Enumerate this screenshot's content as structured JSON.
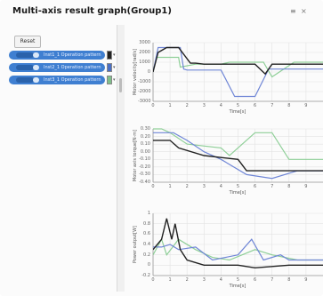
{
  "window": {
    "title": "Multi-axis result graph(Group1)"
  },
  "toolbar": {
    "icons": [
      "more-icon",
      "close-icon"
    ],
    "glyphs": [
      "≡",
      "×"
    ]
  },
  "left_panel": {
    "reset_label": "Reset",
    "series": [
      {
        "label": "Inst1_1 Operation pattern",
        "color": "#222222",
        "symbol": "■"
      },
      {
        "label": "Inst2_1 Operation pattern",
        "color": "#4a6fc4",
        "symbol": "■"
      },
      {
        "label": "Inst3_1 Operation pattern",
        "color": "#7fbf8a",
        "symbol": "■"
      }
    ]
  },
  "colors": {
    "accent": "#3f7fd1",
    "series_black": "#222222",
    "series_blue": "#6f86d6",
    "series_green": "#8fcf98",
    "grid": "#e3e3e3"
  },
  "chart_data": [
    {
      "type": "line",
      "title": "",
      "xlabel": "Time[s]",
      "ylabel": "Motor velocity[rad/s]",
      "ylim": [
        -3000,
        3000
      ],
      "xlim": [
        0,
        10
      ],
      "y_ticks": [
        "3000",
        "2000",
        "1000",
        "0",
        "-1000",
        "-2000",
        "-3000"
      ],
      "x_ticks": [
        "0",
        "1",
        "2",
        "3",
        "4",
        "5",
        "6",
        "7",
        "8",
        "9"
      ],
      "grid": true,
      "series": [
        {
          "color": "#222222",
          "x": [
            0,
            0.3,
            0.8,
            1.5,
            2.2,
            2.5,
            3,
            3.4,
            4.3,
            6.0,
            6.6,
            7.0,
            7.3,
            10
          ],
          "y": [
            0,
            2000,
            2500,
            2500,
            900,
            900,
            800,
            800,
            800,
            800,
            -200,
            800,
            800,
            800
          ]
        },
        {
          "color": "#6f86d6",
          "x": [
            0,
            0.3,
            0.6,
            1.6,
            1.8,
            2,
            2.5,
            4.0,
            4.8,
            6.0,
            6.8,
            7.5,
            10
          ],
          "y": [
            0,
            2500,
            2500,
            2500,
            300,
            200,
            200,
            200,
            -2500,
            -2500,
            300,
            300,
            300
          ]
        },
        {
          "color": "#8fcf98",
          "x": [
            0,
            0.2,
            0.5,
            1.5,
            1.6,
            2.5,
            4.0,
            4.5,
            6.5,
            7.0,
            8.3,
            10
          ],
          "y": [
            0,
            1500,
            1500,
            1500,
            500,
            800,
            800,
            1000,
            1000,
            -500,
            1000,
            1000
          ]
        }
      ]
    },
    {
      "type": "line",
      "title": "",
      "xlabel": "Time[s]",
      "ylabel": "Motor axis torque[N·m]",
      "ylim": [
        -0.4,
        0.3
      ],
      "xlim": [
        0,
        10
      ],
      "y_ticks": [
        "0.30",
        "0.20",
        "0.10",
        "0.00",
        "-0.10",
        "-0.20",
        "-0.30",
        "-0.40"
      ],
      "x_ticks": [
        "0",
        "1",
        "2",
        "3",
        "4",
        "5",
        "6",
        "7",
        "8",
        "9"
      ],
      "grid": true,
      "series": [
        {
          "color": "#222222",
          "x": [
            0,
            0.3,
            1.0,
            1.5,
            3.0,
            5.0,
            5.5,
            8,
            10
          ],
          "y": [
            0.15,
            0.15,
            0.15,
            0.05,
            -0.05,
            -0.1,
            -0.25,
            -0.25,
            -0.25
          ]
        },
        {
          "color": "#6f86d6",
          "x": [
            0,
            1.2,
            2.0,
            3.0,
            4.0,
            5.5,
            7.0,
            8.5,
            10
          ],
          "y": [
            0.25,
            0.25,
            0.15,
            0.0,
            -0.1,
            -0.3,
            -0.35,
            -0.25,
            -0.25
          ]
        },
        {
          "color": "#8fcf98",
          "x": [
            0,
            0.5,
            1.0,
            2.0,
            4.0,
            4.5,
            6.0,
            7.0,
            8.0,
            10
          ],
          "y": [
            0.3,
            0.3,
            0.25,
            0.1,
            0.05,
            -0.05,
            0.25,
            0.25,
            -0.1,
            -0.1
          ]
        }
      ]
    },
    {
      "type": "line",
      "title": "",
      "xlabel": "Time[s]",
      "ylabel": "Power output[W]",
      "ylim": [
        -0.2,
        1.0
      ],
      "xlim": [
        0,
        10
      ],
      "y_ticks": [
        "1",
        "0.8",
        "0.6",
        "0.4",
        "0.2",
        "0",
        "-0.2"
      ],
      "x_ticks": [
        "0",
        "1",
        "2",
        "3",
        "4",
        "5",
        "6",
        "7",
        "8",
        "9"
      ],
      "grid": true,
      "series": [
        {
          "color": "#222222",
          "x": [
            0,
            0.5,
            0.8,
            1.1,
            1.3,
            1.6,
            2.0,
            2.5,
            3.0,
            5.0,
            6.0,
            8.0,
            10
          ],
          "y": [
            0.3,
            0.5,
            0.9,
            0.5,
            0.8,
            0.3,
            0.1,
            0.05,
            0.0,
            0.0,
            -0.05,
            0.0,
            0.0
          ]
        },
        {
          "color": "#6f86d6",
          "x": [
            0,
            0.5,
            1.0,
            1.5,
            2.5,
            3.5,
            5.0,
            5.8,
            6.5,
            7.5,
            8.0,
            10
          ],
          "y": [
            0.35,
            0.35,
            0.4,
            0.3,
            0.35,
            0.1,
            0.2,
            0.5,
            0.1,
            0.2,
            0.1,
            0.1
          ]
        },
        {
          "color": "#8fcf98",
          "x": [
            0,
            0.5,
            0.8,
            1.5,
            2.5,
            3.5,
            4.5,
            6.0,
            7.0,
            8.5,
            10
          ],
          "y": [
            0.2,
            0.5,
            0.2,
            0.5,
            0.3,
            0.15,
            0.1,
            0.3,
            0.2,
            0.1,
            0.1
          ]
        }
      ]
    }
  ]
}
